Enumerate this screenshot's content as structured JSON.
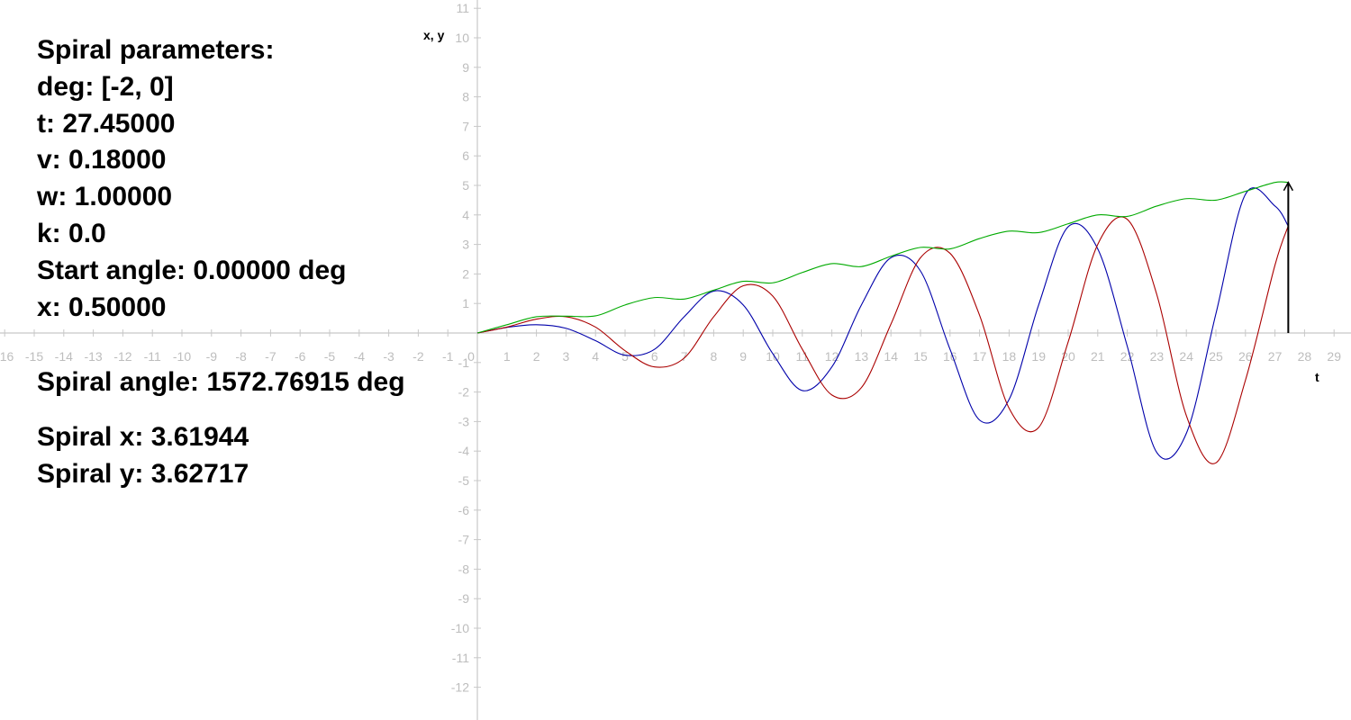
{
  "panel": {
    "lines": [
      "Spiral parameters:",
      "deg: [-2, 0]",
      "t: 27.45000",
      "v: 0.18000",
      "w: 1.00000",
      "k: 0.0",
      "Start angle: 0.00000 deg",
      "x: 0.50000"
    ],
    "spiral_angle": "Spiral angle: 1572.76915 deg",
    "spiral_x": "Spiral x: 3.61944",
    "spiral_y": "Spiral y: 3.62717"
  },
  "chart_data": {
    "type": "line",
    "xlabel": "t",
    "ylabel": "x, y",
    "xlim": [
      -16,
      29
    ],
    "ylim": [
      -12,
      11
    ],
    "grid": false,
    "x_tick_labels": [
      "-16",
      "-15",
      "-14",
      "-13",
      "-12",
      "-11",
      "-10",
      "-9",
      "-8",
      "-7",
      "-6",
      "-5",
      "-4",
      "-3",
      "-2",
      "-1",
      "0",
      "1",
      "2",
      "3",
      "4",
      "5",
      "6",
      "7",
      "8",
      "9",
      "10",
      "11",
      "12",
      "13",
      "14",
      "15",
      "16",
      "17",
      "18",
      "19",
      "20",
      "21",
      "22",
      "23",
      "24",
      "25",
      "26",
      "27",
      "28",
      "29"
    ],
    "y_tick_labels": [
      "11",
      "10",
      "9",
      "8",
      "7",
      "6",
      "5",
      "4",
      "3",
      "2",
      "1",
      "-1",
      "-2",
      "-3",
      "-4",
      "-5",
      "-6",
      "-7",
      "-8",
      "-9",
      "-10",
      "-11",
      "-12"
    ],
    "series": [
      {
        "color": "#0000aa",
        "x": [
          0,
          1,
          2,
          3,
          4,
          5,
          6,
          7,
          8,
          9,
          10,
          11,
          12,
          13,
          14,
          15,
          16,
          17,
          18,
          19,
          20,
          21,
          22,
          23,
          24,
          25,
          26,
          27,
          27.45
        ],
        "values": [
          0,
          0.19,
          0.28,
          0.16,
          -0.26,
          -0.75,
          -0.55,
          0.55,
          1.42,
          0.95,
          -0.7,
          -1.95,
          -1.15,
          0.95,
          2.55,
          2.1,
          -0.55,
          -2.95,
          -2.25,
          0.95,
          3.6,
          2.85,
          -0.45,
          -4.05,
          -3.4,
          0.65,
          4.7,
          4.3,
          3.62
        ]
      },
      {
        "color": "#aa0000",
        "x": [
          0,
          1,
          2,
          3,
          4,
          5,
          6,
          7,
          8,
          9,
          10,
          11,
          12,
          13,
          14,
          15,
          16,
          17,
          18,
          19,
          20,
          21,
          22,
          23,
          24,
          25,
          26,
          27,
          27.45
        ],
        "values": [
          0,
          0.2,
          0.47,
          0.55,
          0.2,
          -0.6,
          -1.15,
          -0.85,
          0.55,
          1.6,
          1.25,
          -0.55,
          -2.1,
          -1.85,
          0.3,
          2.55,
          2.7,
          0.6,
          -2.55,
          -3.2,
          -0.3,
          3.0,
          3.85,
          1.3,
          -2.8,
          -4.4,
          -1.6,
          2.3,
          3.63
        ]
      },
      {
        "color": "#00aa00",
        "x": [
          0,
          1,
          2,
          3,
          4,
          5,
          6,
          7,
          8,
          9,
          10,
          11,
          12,
          13,
          14,
          15,
          16,
          17,
          18,
          19,
          20,
          21,
          22,
          23,
          24,
          25,
          26,
          27,
          27.45
        ],
        "values": [
          0,
          0.28,
          0.55,
          0.57,
          0.58,
          0.95,
          1.2,
          1.15,
          1.45,
          1.75,
          1.7,
          2.05,
          2.35,
          2.25,
          2.6,
          2.9,
          2.85,
          3.2,
          3.45,
          3.4,
          3.7,
          4.0,
          3.95,
          4.3,
          4.55,
          4.5,
          4.8,
          5.1,
          5.1
        ]
      }
    ],
    "arrow": {
      "x": 27.45,
      "from": 0,
      "to": 5.1
    }
  }
}
